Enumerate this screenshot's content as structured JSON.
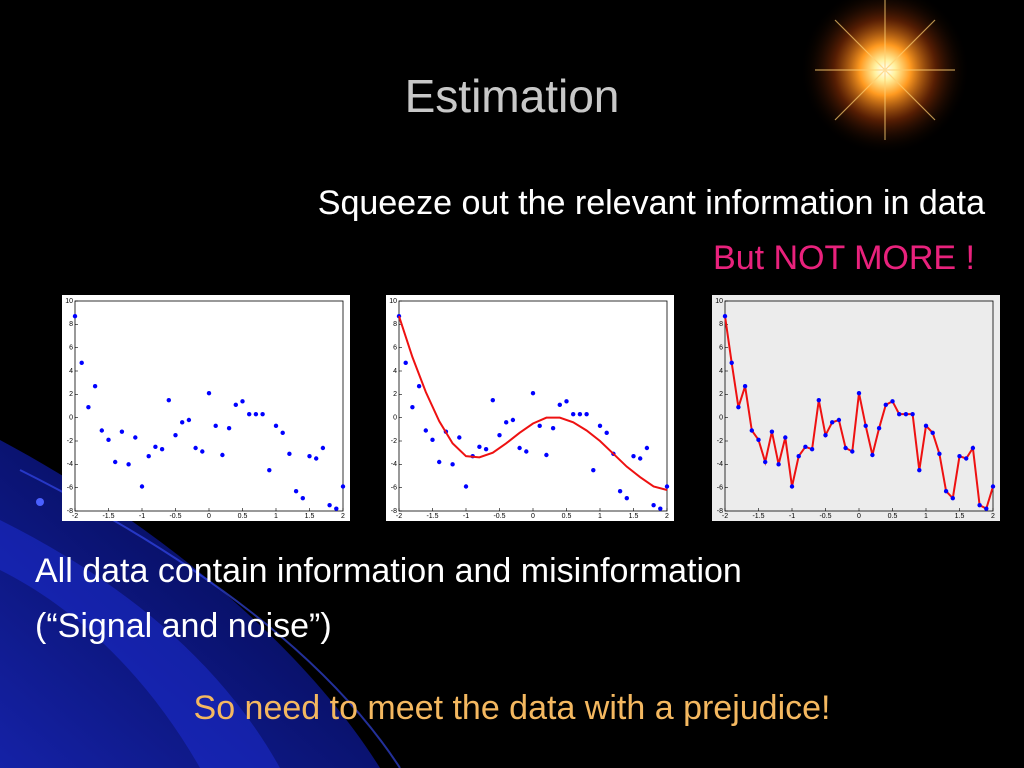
{
  "slide": {
    "title": "Estimation",
    "subtitle": "Squeeze out the relevant information in data",
    "emphasis": "But NOT MORE !",
    "body": [
      "All data contain information and misinformation",
      "(“Signal and noise”)"
    ],
    "conclusion": "So need to meet the data with a prejudice!"
  },
  "chart_data": [
    {
      "type": "scatter",
      "background": "#ffffff",
      "x": [
        -2,
        -1.9,
        -1.8,
        -1.7,
        -1.6,
        -1.5,
        -1.4,
        -1.3,
        -1.2,
        -1.1,
        -1,
        -0.9,
        -0.8,
        -0.7,
        -0.6,
        -0.5,
        -0.4,
        -0.3,
        -0.2,
        -0.1,
        0,
        0.1,
        0.2,
        0.3,
        0.4,
        0.5,
        0.6,
        0.7,
        0.8,
        0.9,
        1,
        1.1,
        1.2,
        1.3,
        1.4,
        1.5,
        1.6,
        1.7,
        1.8,
        1.9,
        2
      ],
      "series": [
        {
          "marker_color": "#0000ff",
          "values": [
            8.7,
            4.7,
            0.9,
            2.7,
            -1.1,
            -1.9,
            -3.8,
            -1.2,
            -4.0,
            -1.7,
            -5.9,
            -3.3,
            -2.5,
            -2.7,
            1.5,
            -1.5,
            -0.4,
            -0.2,
            -2.6,
            -2.9,
            2.1,
            -0.7,
            -3.2,
            -0.9,
            1.1,
            1.4,
            0.3,
            0.3,
            0.3,
            -4.5,
            -0.7,
            -1.3,
            -3.1,
            -6.3,
            -6.9,
            -3.3,
            -3.5,
            -2.6,
            -7.5,
            -7.8,
            -5.9
          ]
        }
      ],
      "xlim": [
        -2,
        2
      ],
      "ylim": [
        -8,
        10
      ],
      "xticks": [
        -2,
        -1.5,
        -1,
        -0.5,
        0,
        0.5,
        1,
        1.5,
        2
      ],
      "yticks": [
        -8,
        -6,
        -4,
        -2,
        0,
        2,
        4,
        6,
        8,
        10
      ]
    },
    {
      "type": "scatter",
      "background": "#ffffff",
      "x": [
        -2,
        -1.9,
        -1.8,
        -1.7,
        -1.6,
        -1.5,
        -1.4,
        -1.3,
        -1.2,
        -1.1,
        -1,
        -0.9,
        -0.8,
        -0.7,
        -0.6,
        -0.5,
        -0.4,
        -0.3,
        -0.2,
        -0.1,
        0,
        0.1,
        0.2,
        0.3,
        0.4,
        0.5,
        0.6,
        0.7,
        0.8,
        0.9,
        1,
        1.1,
        1.2,
        1.3,
        1.4,
        1.5,
        1.6,
        1.7,
        1.8,
        1.9,
        2
      ],
      "series": [
        {
          "marker_color": "#0000ff",
          "values": [
            8.7,
            4.7,
            0.9,
            2.7,
            -1.1,
            -1.9,
            -3.8,
            -1.2,
            -4.0,
            -1.7,
            -5.9,
            -3.3,
            -2.5,
            -2.7,
            1.5,
            -1.5,
            -0.4,
            -0.2,
            -2.6,
            -2.9,
            2.1,
            -0.7,
            -3.2,
            -0.9,
            1.1,
            1.4,
            0.3,
            0.3,
            0.3,
            -4.5,
            -0.7,
            -1.3,
            -3.1,
            -6.3,
            -6.9,
            -3.3,
            -3.5,
            -2.6,
            -7.5,
            -7.8,
            -5.9
          ]
        },
        {
          "line_color": "#ee1111",
          "x": [
            -2,
            -1.8,
            -1.6,
            -1.4,
            -1.2,
            -1,
            -0.8,
            -0.6,
            -0.4,
            -0.2,
            0,
            0.2,
            0.4,
            0.6,
            0.8,
            1,
            1.2,
            1.4,
            1.6,
            1.8,
            2
          ],
          "values": [
            8.7,
            5.2,
            2.2,
            -0.3,
            -2.2,
            -3.3,
            -3.4,
            -3.0,
            -2.2,
            -1.3,
            -0.5,
            0.0,
            0.0,
            -0.4,
            -1.1,
            -2.0,
            -3.1,
            -4.2,
            -5.1,
            -5.9,
            -6.2
          ]
        }
      ],
      "xlim": [
        -2,
        2
      ],
      "ylim": [
        -8,
        10
      ],
      "xticks": [
        -2,
        -1.5,
        -1,
        -0.5,
        0,
        0.5,
        1,
        1.5,
        2
      ],
      "yticks": [
        -8,
        -6,
        -4,
        -2,
        0,
        2,
        4,
        6,
        8,
        10
      ]
    },
    {
      "type": "line",
      "background": "#ececec",
      "x": [
        -2,
        -1.9,
        -1.8,
        -1.7,
        -1.6,
        -1.5,
        -1.4,
        -1.3,
        -1.2,
        -1.1,
        -1,
        -0.9,
        -0.8,
        -0.7,
        -0.6,
        -0.5,
        -0.4,
        -0.3,
        -0.2,
        -0.1,
        0,
        0.1,
        0.2,
        0.3,
        0.4,
        0.5,
        0.6,
        0.7,
        0.8,
        0.9,
        1,
        1.1,
        1.2,
        1.3,
        1.4,
        1.5,
        1.6,
        1.7,
        1.8,
        1.9,
        2
      ],
      "series": [
        {
          "line_color": "#ee1111",
          "marker_color": "#0000ff",
          "values": [
            8.7,
            4.7,
            0.9,
            2.7,
            -1.1,
            -1.9,
            -3.8,
            -1.2,
            -4.0,
            -1.7,
            -5.9,
            -3.3,
            -2.5,
            -2.7,
            1.5,
            -1.5,
            -0.4,
            -0.2,
            -2.6,
            -2.9,
            2.1,
            -0.7,
            -3.2,
            -0.9,
            1.1,
            1.4,
            0.3,
            0.3,
            0.3,
            -4.5,
            -0.7,
            -1.3,
            -3.1,
            -6.3,
            -6.9,
            -3.3,
            -3.5,
            -2.6,
            -7.5,
            -7.8,
            -5.9
          ]
        }
      ],
      "xlim": [
        -2,
        2
      ],
      "ylim": [
        -8,
        10
      ],
      "xticks": [
        -2,
        -1.5,
        -1,
        -0.5,
        0,
        0.5,
        1,
        1.5,
        2
      ],
      "yticks": [
        -8,
        -6,
        -4,
        -2,
        0,
        2,
        4,
        6,
        8,
        10
      ]
    }
  ]
}
